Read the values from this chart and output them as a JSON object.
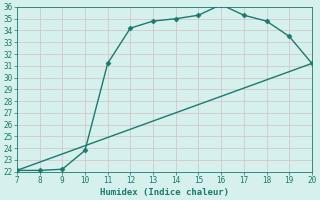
{
  "xlabel": "Humidex (Indice chaleur)",
  "ylabel": "",
  "background_color": "#d6f0ed",
  "line_color": "#1a7a6e",
  "grid_color": "#d4bfc8",
  "xlim": [
    7,
    20
  ],
  "ylim": [
    22,
    36
  ],
  "xticks": [
    7,
    8,
    9,
    10,
    11,
    12,
    13,
    14,
    15,
    16,
    17,
    18,
    19,
    20
  ],
  "yticks": [
    22,
    23,
    24,
    25,
    26,
    27,
    28,
    29,
    30,
    31,
    32,
    33,
    34,
    35,
    36
  ],
  "line1_x": [
    7,
    8,
    9,
    10,
    11,
    12,
    13,
    14,
    15,
    16,
    17,
    18,
    19,
    20
  ],
  "line1_y": [
    22.1,
    22.1,
    22.2,
    23.8,
    31.2,
    34.2,
    34.8,
    35.0,
    35.3,
    36.2,
    35.3,
    34.8,
    33.5,
    31.2
  ],
  "line2_x": [
    7,
    20
  ],
  "line2_y": [
    22.1,
    31.2
  ],
  "marker": "D",
  "marker_size": 2.5,
  "linewidth": 1.0,
  "font_family": "monospace",
  "xlabel_fontsize": 6.5,
  "tick_fontsize": 5.5
}
